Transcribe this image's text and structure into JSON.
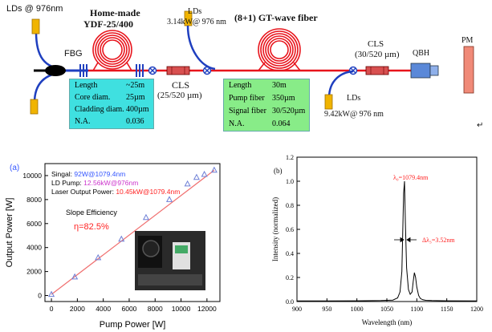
{
  "diagram": {
    "labels": {
      "lds_left": "LDs @ 976nm",
      "fbg": "FBG",
      "home_made_line1": "Home-made",
      "home_made_line2": "YDF-25/400",
      "cls1_line1": "CLS",
      "cls1_line2": "(25/520 µm)",
      "lds_top_line1": "LDs",
      "lds_top_line2": "3.14kW@ 976 nm",
      "gt_wave": "(8+1) GT-wave fiber",
      "cls2_line1": "CLS",
      "cls2_line2": "(30/520 µm)",
      "qbh": "QBH",
      "pm": "PM",
      "lds_bottom_line1": "LDs",
      "lds_bottom_line2": "9.42kW@ 976 nm",
      "corner_mark": "↵"
    },
    "colors": {
      "fiber_black": "#000000",
      "fiber_blue": "#1f3fbf",
      "fiber_red": "#e8141c",
      "ld_yellow": "#f0b400",
      "box_cyan": "#3fe0e0",
      "box_green": "#88ec88",
      "cls_red": "#d85050",
      "pm_salmon": "#f08a78",
      "qbh_blue": "#5a88d8"
    },
    "ydf_table": {
      "rows": [
        {
          "key": "Length",
          "value": "~25m"
        },
        {
          "key": "Core diam.",
          "value": "25µm"
        },
        {
          "key": "Cladding diam.",
          "value": "400µm"
        },
        {
          "key": "N.A.",
          "value": "0.036"
        }
      ]
    },
    "gt_table": {
      "rows": [
        {
          "key": "Length",
          "value": "30m"
        },
        {
          "key": "Pump fiber",
          "value": "350µm"
        },
        {
          "key": "Signal fiber",
          "value": "30/520µm"
        },
        {
          "key": "N.A.",
          "value": "0.064"
        }
      ]
    }
  },
  "panel_a": {
    "tag": "(a)",
    "info_signal_key": "Singal: ",
    "info_signal_val": "92W@1079.4nm",
    "info_ld_key": "LD Pump: ",
    "info_ld_val": "12.56kW@976nm",
    "info_laser_key": "Laser Output Power: ",
    "info_laser_val": "10.45kW@1079.4nm",
    "slope_label": "Slope Efficiency",
    "slope_value": "η=82.5%",
    "colors": {
      "signal": "#3355ff",
      "ld": "#cc33cc",
      "laser": "#ff2222",
      "fit": "#f07070",
      "marker": "#6d7fd6"
    }
  },
  "panel_b": {
    "tag": "(b)",
    "peak_annotation": "λ₀=1079.4nm",
    "width_annotation": "Δλ₃=3.52nm",
    "colors": {
      "line": "#000000",
      "annotation": "#ff2222"
    }
  },
  "chart_data": [
    {
      "type": "scatter",
      "title": "",
      "xlabel": "Pump Power [W]",
      "ylabel": "Output Power [W]",
      "xlim": [
        -500,
        13000
      ],
      "ylim": [
        -500,
        11000
      ],
      "xticks": [
        0,
        2000,
        4000,
        6000,
        8000,
        10000,
        12000
      ],
      "yticks": [
        0,
        2000,
        4000,
        6000,
        8000,
        10000
      ],
      "grid": false,
      "series": [
        {
          "x": [
            0,
            1800,
            3600,
            5400,
            7300,
            9100,
            10500,
            11200,
            11800,
            12560
          ],
          "y": [
            92,
            1550,
            3150,
            4700,
            6500,
            8000,
            9300,
            9850,
            10100,
            10450
          ]
        }
      ],
      "fit_line": {
        "x": [
          0,
          12560
        ],
        "y": [
          92,
          10450
        ]
      }
    },
    {
      "type": "line",
      "title": "",
      "xlabel": "Wavelength (nm)",
      "ylabel": "Intensity (normalized)",
      "xlim": [
        900,
        1200
      ],
      "ylim": [
        0,
        1.2
      ],
      "xticks": [
        900,
        950,
        1000,
        1050,
        1100,
        1150,
        1200
      ],
      "yticks": [
        0.0,
        0.2,
        0.4,
        0.6,
        0.8,
        1.0,
        1.2
      ],
      "grid": false,
      "series": [
        {
          "x": [
            900,
            950,
            1000,
            1040,
            1060,
            1068,
            1072,
            1075,
            1077,
            1078,
            1079.4,
            1081,
            1083,
            1086,
            1089,
            1092,
            1094,
            1096,
            1098,
            1100,
            1103,
            1106,
            1110,
            1115,
            1125,
            1150,
            1200
          ],
          "y": [
            0.005,
            0.005,
            0.006,
            0.008,
            0.012,
            0.03,
            0.08,
            0.25,
            0.7,
            0.9,
            1.0,
            0.65,
            0.28,
            0.1,
            0.06,
            0.08,
            0.17,
            0.24,
            0.2,
            0.12,
            0.05,
            0.025,
            0.015,
            0.01,
            0.008,
            0.006,
            0.005
          ]
        }
      ]
    }
  ]
}
